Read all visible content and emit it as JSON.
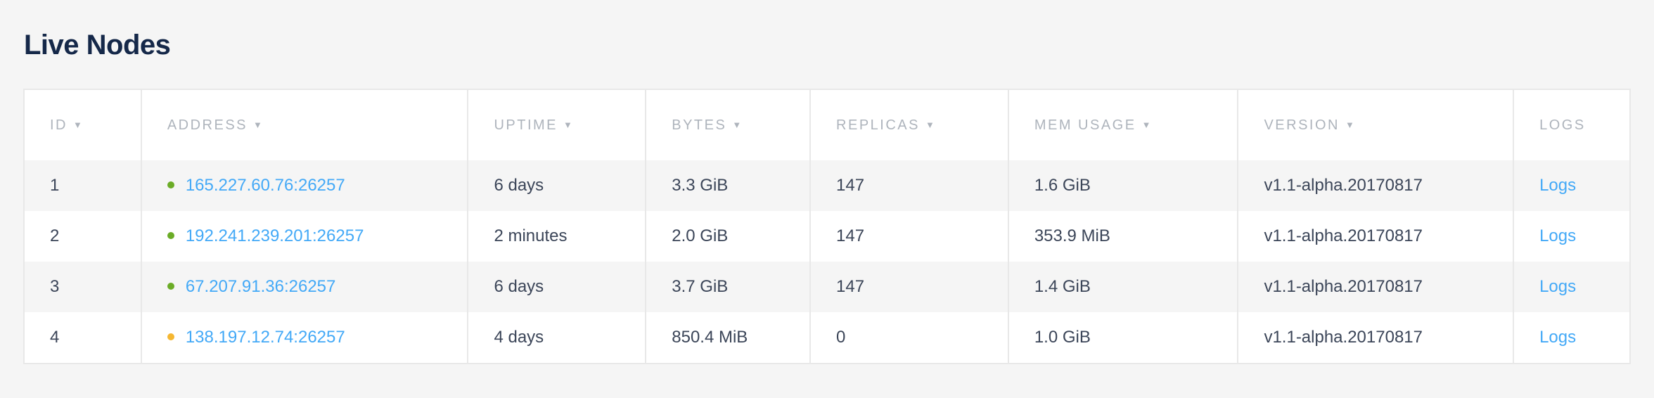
{
  "page": {
    "title": "Live Nodes"
  },
  "table": {
    "columns": [
      {
        "label": "ID",
        "sortable": true
      },
      {
        "label": "ADDRESS",
        "sortable": true
      },
      {
        "label": "UPTIME",
        "sortable": true
      },
      {
        "label": "BYTES",
        "sortable": true
      },
      {
        "label": "REPLICAS",
        "sortable": true
      },
      {
        "label": "MEM USAGE",
        "sortable": true
      },
      {
        "label": "VERSION",
        "sortable": true
      },
      {
        "label": "LOGS",
        "sortable": false
      }
    ],
    "sort_arrow": "▼",
    "rows": [
      {
        "id": "1",
        "status": "healthy",
        "address": "165.227.60.76:26257",
        "uptime": "6 days",
        "bytes": "3.3 GiB",
        "replicas": "147",
        "mem": "1.6 GiB",
        "version": "v1.1-alpha.20170817",
        "logs": "Logs"
      },
      {
        "id": "2",
        "status": "healthy",
        "address": "192.241.239.201:26257",
        "uptime": "2 minutes",
        "bytes": "2.0 GiB",
        "replicas": "147",
        "mem": "353.9 MiB",
        "version": "v1.1-alpha.20170817",
        "logs": "Logs"
      },
      {
        "id": "3",
        "status": "healthy",
        "address": "67.207.91.36:26257",
        "uptime": "6 days",
        "bytes": "3.7 GiB",
        "replicas": "147",
        "mem": "1.4 GiB",
        "version": "v1.1-alpha.20170817",
        "logs": "Logs"
      },
      {
        "id": "4",
        "status": "suspect",
        "address": "138.197.12.74:26257",
        "uptime": "4 days",
        "bytes": "850.4 MiB",
        "replicas": "0",
        "mem": "1.0 GiB",
        "version": "v1.1-alpha.20170817",
        "logs": "Logs"
      }
    ]
  },
  "colors": {
    "healthy": "#6bac27",
    "suspect": "#f5b731",
    "link": "#43a9f7",
    "title": "#152849"
  }
}
